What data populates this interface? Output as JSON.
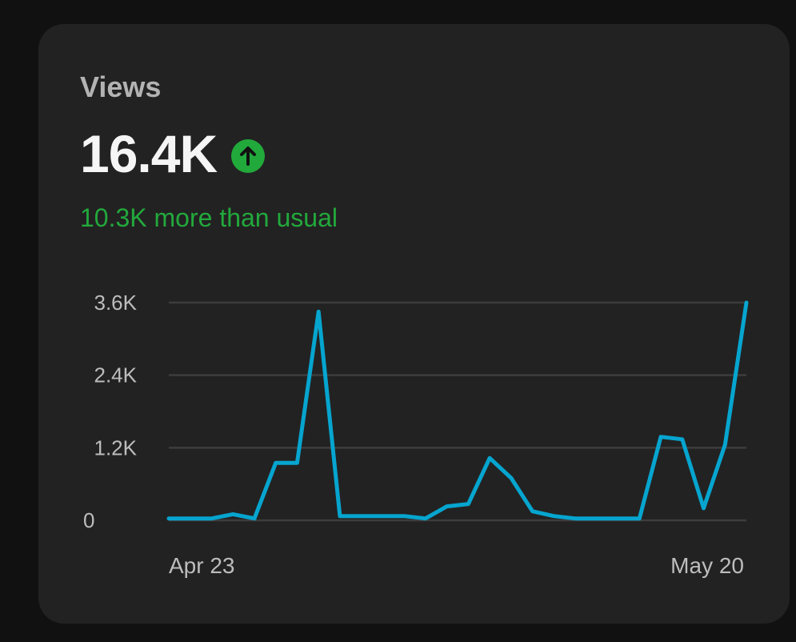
{
  "card": {
    "title": "Views",
    "value": "16.4K",
    "trend_icon": "arrow-up-circle-icon",
    "trend_color": "#22a93c",
    "subtext": "10.3K more than usual"
  },
  "chart_data": {
    "type": "line",
    "line_color": "#06a5cf",
    "grid": true,
    "ylim": [
      0,
      3600
    ],
    "y_ticks": [
      {
        "value": 3600,
        "label": "3.6K"
      },
      {
        "value": 2400,
        "label": "2.4K"
      },
      {
        "value": 1200,
        "label": "1.2K"
      },
      {
        "value": 0,
        "label": "0"
      }
    ],
    "x_labels": [
      {
        "index": 0,
        "label": "Apr 23",
        "anchor": "start"
      },
      {
        "index": 27,
        "label": "May 20",
        "anchor": "end"
      }
    ],
    "series": [
      {
        "values": [
          30,
          30,
          30,
          100,
          30,
          950,
          950,
          3450,
          70,
          70,
          70,
          70,
          30,
          230,
          270,
          1030,
          700,
          150,
          70,
          30,
          30,
          30,
          30,
          1380,
          1340,
          200,
          1250,
          3600
        ]
      }
    ]
  }
}
